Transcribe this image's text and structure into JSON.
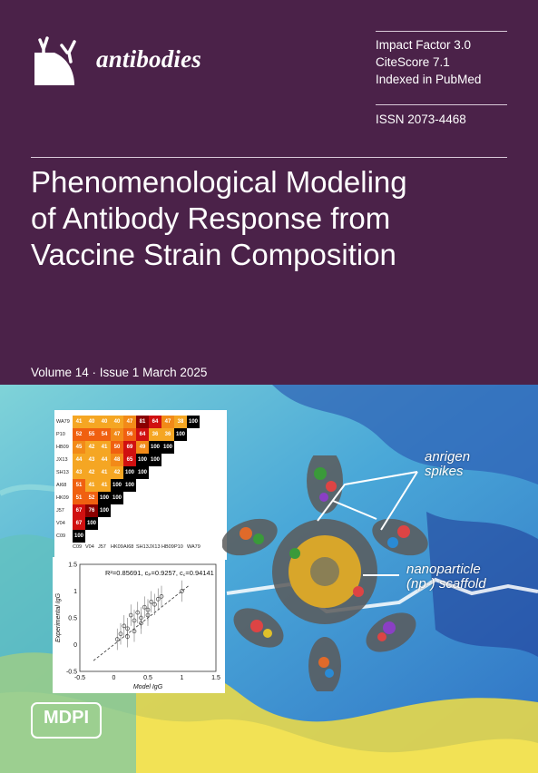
{
  "journal": {
    "name": "antibodies"
  },
  "metrics": {
    "impact_factor": "Impact Factor 3.0",
    "citescore": "CiteScore 7.1",
    "indexed": "Indexed in PubMed",
    "issn": "ISSN 2073-4468"
  },
  "article": {
    "title_lines": [
      "Phenomenological Modeling",
      "of Antibody Response from",
      "Vaccine Strain Composition"
    ]
  },
  "issue": {
    "volume_line": "Volume 14 · Issue 1 March 2025"
  },
  "figure": {
    "annotation_spikes": [
      "anrigen",
      "spikes"
    ],
    "annotation_scaffold": [
      "nanoparticle",
      "(np-) scaffold"
    ],
    "heatmap": {
      "labels": [
        "C09",
        "V04",
        "J57",
        "HK09",
        "AI68",
        "SH13",
        "JX13",
        "HB09",
        "P10",
        "WA79"
      ],
      "rows": [
        [
          100
        ],
        [
          67,
          100
        ],
        [
          67,
          76,
          100
        ],
        [
          51,
          52,
          100,
          100
        ],
        [
          51,
          41,
          41,
          100,
          100
        ],
        [
          43,
          42,
          41,
          42,
          100,
          100
        ],
        [
          44,
          43,
          44,
          48,
          65,
          100,
          100
        ],
        [
          45,
          42,
          41,
          50,
          69,
          49,
          100,
          100
        ],
        [
          52,
          55,
          54,
          47,
          56,
          64,
          36,
          36,
          100
        ],
        [
          41,
          40,
          40,
          40,
          47,
          81,
          64,
          47,
          38,
          100
        ]
      ]
    },
    "scatter": {
      "annotation": "R²=0.85691, cₚ=0.9257, c꜀=0.94141",
      "xlabel": "Model IgG",
      "ylabel": "Experimental IgG",
      "xticks": [
        "-0.5",
        "0",
        "0.5",
        "1",
        "1.5"
      ],
      "yticks": [
        "1.5",
        "1",
        "0.5",
        "0",
        "-0.5"
      ]
    }
  },
  "publisher": {
    "name": "MDPI"
  }
}
